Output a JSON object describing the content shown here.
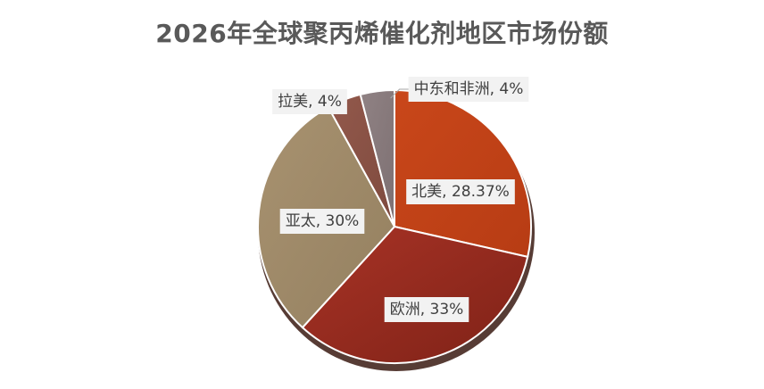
{
  "chart_data": {
    "type": "pie",
    "title": "2026年全球聚丙烯催化剂地区市场份额",
    "slices": [
      {
        "name": "北美",
        "value": 28.37,
        "label": "北美, 28.37%",
        "color": "#c9471a",
        "color_dark": "#b73c14"
      },
      {
        "name": "欧洲",
        "value": 33,
        "label": "欧洲, 33%",
        "color": "#a83326",
        "color_dark": "#7f2217"
      },
      {
        "name": "亚太",
        "value": 30,
        "label": "亚太, 30%",
        "color": "#a89270",
        "color_dark": "#948060"
      },
      {
        "name": "拉美",
        "value": 4,
        "label": "拉美, 4%",
        "color": "#93594c",
        "color_dark": "#7e4a3e"
      },
      {
        "name": "中东和非洲",
        "value": 4,
        "label": "中东和非洲, 4%",
        "color": "#908284",
        "color_dark": "#7d7072"
      }
    ],
    "legend": "none",
    "data_labels": "category, percent"
  }
}
